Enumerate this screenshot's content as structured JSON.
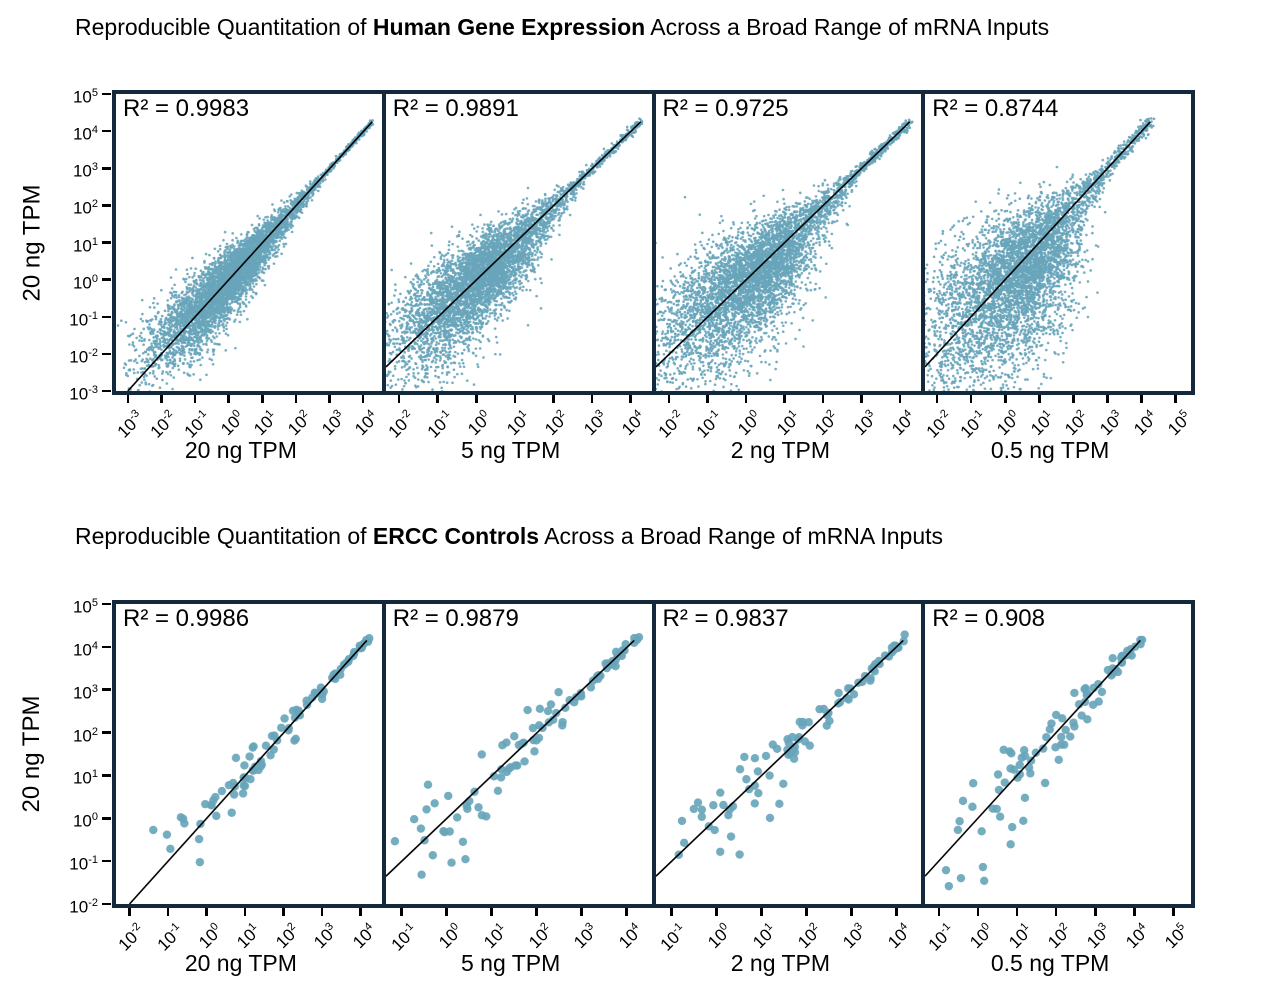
{
  "styles": {
    "point_color": "#68a5bb",
    "frame_color": "#15293d",
    "line_color": "#000000",
    "text_color": "#000000",
    "background": "#ffffff"
  },
  "chart_data": {
    "type": "scatter",
    "scale": "log10-log10",
    "grid": false,
    "identity_line": true,
    "figures": [
      {
        "id": "human",
        "kind": "human",
        "title_prefix": "Reproducible Quantitation of ",
        "title_bold": "Human Gene Expression",
        "title_suffix": " Across a Broad Range of mRNA Inputs",
        "ylabel": "20 ng TPM",
        "y_tick_exponents": [
          5,
          4,
          3,
          2,
          1,
          0,
          -1,
          -2,
          -3
        ],
        "y_range": [
          -3,
          5
        ],
        "line_end_exponent": 4.25,
        "panels": [
          {
            "r2_label": "R² = 0.9983",
            "r2": 0.9983,
            "xlabel": "20 ng TPM",
            "x_tick_exponents": [
              -3,
              -2,
              -1,
              0,
              1,
              2,
              3,
              4
            ],
            "x_range": [
              -3.35,
              4.55
            ],
            "scatter": {
              "n": 5200,
              "radius": 1.3,
              "spread": 1.0,
              "x_bias": 0,
              "seed": 11
            }
          },
          {
            "r2_label": "R² = 0.9891",
            "r2": 0.9891,
            "xlabel": "5 ng TPM",
            "x_tick_exponents": [
              -2,
              -1,
              0,
              1,
              2,
              3,
              4
            ],
            "x_range": [
              -2.35,
              4.55
            ],
            "scatter": {
              "n": 5200,
              "radius": 1.3,
              "spread": 1.45,
              "x_bias": 0.05,
              "seed": 22
            }
          },
          {
            "r2_label": "R² = 0.9725",
            "r2": 0.9725,
            "xlabel": "2 ng TPM",
            "x_tick_exponents": [
              -2,
              -1,
              0,
              1,
              2,
              3,
              4
            ],
            "x_range": [
              -2.35,
              4.55
            ],
            "scatter": {
              "n": 5200,
              "radius": 1.3,
              "spread": 1.8,
              "x_bias": 0.12,
              "seed": 33
            }
          },
          {
            "r2_label": "R² = 0.8744",
            "r2": 0.8744,
            "xlabel": "0.5 ng TPM",
            "x_tick_exponents": [
              -2,
              -1,
              0,
              1,
              2,
              3,
              4,
              5
            ],
            "x_range": [
              -2.35,
              5.45
            ],
            "scatter": {
              "n": 5200,
              "radius": 1.3,
              "spread": 2.4,
              "x_bias": 0.38,
              "seed": 44
            }
          }
        ]
      },
      {
        "id": "ercc",
        "kind": "ercc",
        "title_prefix": "Reproducible Quantitation of ",
        "title_bold": "ERCC Controls",
        "title_suffix": " Across a Broad Range of mRNA Inputs",
        "ylabel": "20 ng TPM",
        "y_tick_exponents": [
          5,
          4,
          3,
          2,
          1,
          0,
          -1,
          -2
        ],
        "y_range": [
          -2,
          5
        ],
        "line_end_exponent": 4.15,
        "panels": [
          {
            "r2_label": "R² = 0.9986",
            "r2": 0.9986,
            "xlabel": "20 ng TPM",
            "x_tick_exponents": [
              -2,
              -1,
              0,
              1,
              2,
              3,
              4
            ],
            "x_range": [
              -2.35,
              4.55
            ],
            "scatter": {
              "n": 92,
              "radius": 4.2,
              "spread": 1.0,
              "y_bias": 0,
              "seed": 7
            }
          },
          {
            "r2_label": "R² = 0.9879",
            "r2": 0.9879,
            "xlabel": "5 ng TPM",
            "x_tick_exponents": [
              -1,
              0,
              1,
              2,
              3,
              4
            ],
            "x_range": [
              -1.35,
              4.55
            ],
            "scatter": {
              "n": 92,
              "radius": 4.2,
              "spread": 1.55,
              "y_bias": 0.22,
              "seed": 8
            }
          },
          {
            "r2_label": "R² = 0.9837",
            "r2": 0.9837,
            "xlabel": "2 ng TPM",
            "x_tick_exponents": [
              -1,
              0,
              1,
              2,
              3,
              4
            ],
            "x_range": [
              -1.35,
              4.55
            ],
            "scatter": {
              "n": 92,
              "radius": 4.2,
              "spread": 1.5,
              "y_bias": 0.12,
              "seed": 9
            }
          },
          {
            "r2_label": "R² = 0.908",
            "r2": 0.908,
            "xlabel": "0.5 ng TPM",
            "x_tick_exponents": [
              -1,
              0,
              1,
              2,
              3,
              4,
              5
            ],
            "x_range": [
              -1.35,
              5.45
            ],
            "scatter": {
              "n": 92,
              "radius": 4.2,
              "spread": 2.1,
              "y_bias": 0.5,
              "seed": 10
            }
          }
        ]
      }
    ]
  }
}
